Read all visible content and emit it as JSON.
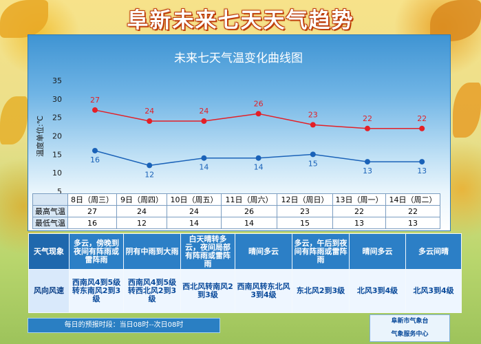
{
  "main_title": "阜新未来七天天气趋势",
  "chart_data": {
    "type": "line",
    "title": "未来七天气温变化曲线图",
    "ylabel": "温度单位:℃",
    "ylim": [
      5,
      35
    ],
    "yticks": [
      5,
      10,
      15,
      20,
      25,
      30,
      35
    ],
    "categories": [
      "8日（周三）",
      "9日（周四）",
      "10日（周五）",
      "11日（周六）",
      "12日（周日）",
      "13日（周一）",
      "14日（周二）"
    ],
    "grid": false,
    "series": [
      {
        "name": "最高气温",
        "color": "#e41f26",
        "values": [
          27,
          24,
          24,
          26,
          23,
          22,
          22
        ]
      },
      {
        "name": "最低气温",
        "color": "#1a62b8",
        "values": [
          16,
          12,
          14,
          14,
          15,
          13,
          13
        ]
      }
    ]
  },
  "table": {
    "high_label": "最高气温",
    "low_label": "最低气温",
    "high": [
      "27",
      "24",
      "24",
      "26",
      "23",
      "22",
      "22"
    ],
    "low": [
      "16",
      "12",
      "14",
      "14",
      "15",
      "13",
      "13"
    ]
  },
  "weather": {
    "label": "天气现象",
    "items": [
      "多云，傍晚到夜间有阵雨或雷阵雨",
      "阴有中雨到大雨",
      "白天晴转多云，夜间局部有阵雨或雷阵雨",
      "晴间多云",
      "多云，午后到夜间有阵雨或雷阵雨",
      "晴间多云",
      "多云间晴"
    ]
  },
  "wind": {
    "label": "风向风速",
    "items": [
      "西南风4到5级转东南风2到3级",
      "西南风4到5级转西北风2到3级",
      "西北风转南风2到3级",
      "西南风转东北风3到4级",
      "东北风2到3级",
      "北风3到4级",
      "北风3到4级"
    ]
  },
  "footer": {
    "period": "每日的预报时段：当日08时--次日08时",
    "org1": "阜新市气象台",
    "org2": "气象服务中心"
  }
}
